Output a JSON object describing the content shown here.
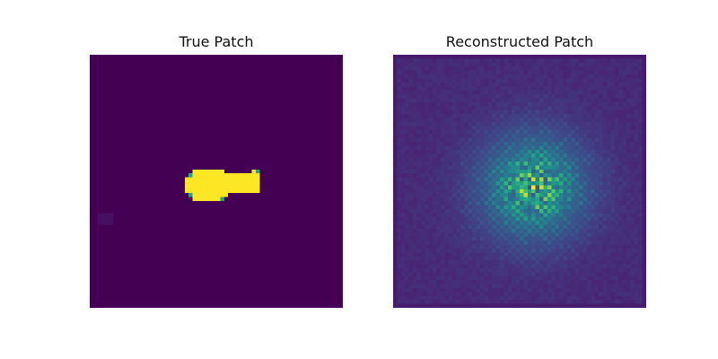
{
  "figure": {
    "panels": [
      {
        "title": "True Patch",
        "colormap": "viridis"
      },
      {
        "title": "Reconstructed Patch",
        "colormap": "viridis"
      }
    ],
    "colors": {
      "background": "#ffffff",
      "viridis_low": "#440154",
      "viridis_mid": "#21918c",
      "viridis_high": "#fde725"
    }
  }
}
